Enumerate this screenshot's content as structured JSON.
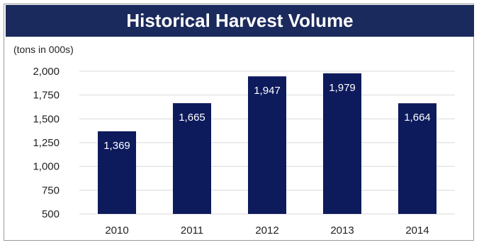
{
  "colors": {
    "title_bg": "#1b2a5c",
    "bar": "#0d1a5c",
    "grid": "#d9d9d9",
    "axis_text": "#222222",
    "data_label": "#ffffff"
  },
  "chart_data": {
    "type": "bar",
    "title": "Historical Harvest Volume",
    "unit_label": "(tons in 000s)",
    "xlabel": "",
    "ylabel": "",
    "categories": [
      "2010",
      "2011",
      "2012",
      "2013",
      "2014"
    ],
    "values": [
      1369,
      1665,
      1947,
      1979,
      1664
    ],
    "value_labels": [
      "1,369",
      "1,665",
      "1,947",
      "1,979",
      "1,664"
    ],
    "ylim": [
      500,
      2000
    ],
    "yticks": [
      500,
      750,
      1000,
      1250,
      1500,
      1750,
      2000
    ],
    "ytick_labels": [
      "500",
      "750",
      "1,000",
      "1,250",
      "1,500",
      "1,750",
      "2,000"
    ],
    "grid": true,
    "legend": "none"
  }
}
